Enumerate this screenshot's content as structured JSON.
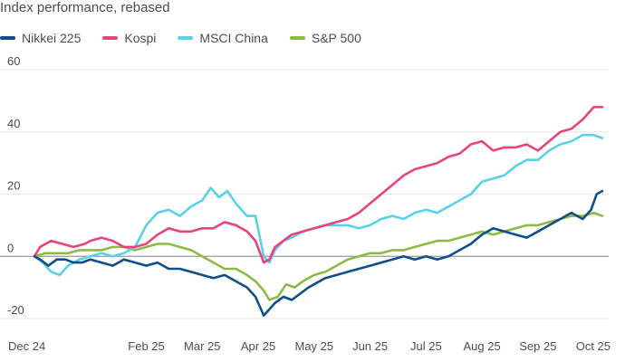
{
  "chart_data": {
    "type": "line",
    "title": "Index performance, rebased",
    "xlabel": "",
    "ylabel": "",
    "ylim": [
      -20,
      60
    ],
    "yticks": [
      60,
      40,
      20,
      0,
      -20
    ],
    "xticks": [
      "Dec 24",
      "Feb 25",
      "Mar 25",
      "Apr 25",
      "May 25",
      "Jun 25",
      "Jul 25",
      "Aug 25",
      "Sep 25",
      "Oct 25"
    ],
    "xtick_pos": [
      0,
      2,
      3,
      4,
      5,
      6,
      7,
      8,
      9,
      10
    ],
    "xlim": [
      0,
      10.2
    ],
    "grid": true,
    "legend_position": "top-left",
    "series": [
      {
        "name": "Nikkei 225",
        "color": "#0f4e8a",
        "x": [
          0,
          0.1,
          0.25,
          0.4,
          0.55,
          0.7,
          0.85,
          1,
          1.2,
          1.4,
          1.6,
          1.8,
          2,
          2.2,
          2.4,
          2.6,
          2.8,
          3,
          3.2,
          3.4,
          3.6,
          3.8,
          3.95,
          4.1,
          4.2,
          4.3,
          4.45,
          4.6,
          4.75,
          4.9,
          5,
          5.2,
          5.4,
          5.6,
          5.8,
          6,
          6.2,
          6.4,
          6.6,
          6.8,
          7,
          7.2,
          7.4,
          7.6,
          7.8,
          8,
          8.2,
          8.4,
          8.6,
          8.8,
          9,
          9.2,
          9.4,
          9.6,
          9.8,
          9.95,
          10.05,
          10.15
        ],
        "values": [
          0,
          -1,
          -3,
          -1,
          -1,
          -2,
          -2,
          -1,
          -2,
          -3,
          -1,
          -2,
          -3,
          -2,
          -4,
          -4,
          -5,
          -6,
          -7,
          -6,
          -8,
          -10,
          -13,
          -19,
          -17,
          -15,
          -13,
          -14,
          -12,
          -10,
          -9,
          -7,
          -6,
          -5,
          -4,
          -3,
          -2,
          -1,
          0,
          -1,
          0,
          -1,
          0,
          2,
          4,
          7,
          9,
          8,
          7,
          6,
          8,
          10,
          12,
          14,
          12,
          15,
          20,
          21
        ]
      },
      {
        "name": "Kospi",
        "color": "#e8437f",
        "x": [
          0,
          0.1,
          0.3,
          0.5,
          0.7,
          0.9,
          1,
          1.2,
          1.4,
          1.6,
          1.8,
          2,
          2.2,
          2.4,
          2.6,
          2.8,
          3,
          3.2,
          3.4,
          3.6,
          3.8,
          3.95,
          4.1,
          4.2,
          4.3,
          4.45,
          4.6,
          4.8,
          5,
          5.2,
          5.4,
          5.6,
          5.8,
          6,
          6.2,
          6.4,
          6.6,
          6.8,
          7,
          7.2,
          7.4,
          7.6,
          7.8,
          8,
          8.2,
          8.4,
          8.6,
          8.8,
          9,
          9.2,
          9.4,
          9.6,
          9.8,
          10,
          10.15
        ],
        "values": [
          0,
          3,
          5,
          4,
          3,
          4,
          5,
          6,
          5,
          3,
          3,
          4,
          7,
          9,
          8,
          8,
          9,
          9,
          11,
          10,
          8,
          5,
          -2,
          -1,
          3,
          5,
          7,
          8,
          9,
          10,
          11,
          12,
          14,
          17,
          20,
          23,
          26,
          28,
          29,
          30,
          32,
          33,
          36,
          37,
          34,
          35,
          35,
          36,
          34,
          37,
          40,
          41,
          44,
          48,
          48
        ]
      },
      {
        "name": "MSCI China",
        "color": "#5bd1e6",
        "x": [
          0,
          0.15,
          0.3,
          0.45,
          0.6,
          0.8,
          1,
          1.2,
          1.4,
          1.6,
          1.8,
          2,
          2.2,
          2.4,
          2.6,
          2.8,
          3,
          3.15,
          3.3,
          3.45,
          3.6,
          3.8,
          3.95,
          4.1,
          4.2,
          4.3,
          4.45,
          4.6,
          4.8,
          5,
          5.2,
          5.4,
          5.6,
          5.8,
          6,
          6.2,
          6.4,
          6.6,
          6.8,
          7,
          7.2,
          7.4,
          7.6,
          7.8,
          8,
          8.2,
          8.4,
          8.6,
          8.8,
          9,
          9.2,
          9.4,
          9.6,
          9.8,
          10,
          10.15
        ],
        "values": [
          0,
          -2,
          -5,
          -6,
          -3,
          -1,
          0,
          1,
          0,
          1,
          3,
          10,
          14,
          15,
          13,
          16,
          18,
          22,
          19,
          21,
          17,
          13,
          13,
          0,
          -2,
          2,
          5,
          6,
          8,
          9,
          10,
          10,
          10,
          9,
          10,
          12,
          13,
          12,
          14,
          15,
          14,
          16,
          18,
          20,
          24,
          25,
          26,
          29,
          31,
          31,
          34,
          36,
          37,
          39,
          39,
          38
        ]
      },
      {
        "name": "S&P 500",
        "color": "#8dba47",
        "x": [
          0,
          0.2,
          0.4,
          0.6,
          0.8,
          1,
          1.2,
          1.4,
          1.6,
          1.8,
          2,
          2.2,
          2.4,
          2.6,
          2.8,
          3,
          3.2,
          3.4,
          3.6,
          3.8,
          3.95,
          4.1,
          4.2,
          4.35,
          4.5,
          4.65,
          4.8,
          5,
          5.2,
          5.4,
          5.6,
          5.8,
          6,
          6.2,
          6.4,
          6.6,
          6.8,
          7,
          7.2,
          7.4,
          7.6,
          7.8,
          8,
          8.2,
          8.4,
          8.6,
          8.8,
          9,
          9.2,
          9.4,
          9.6,
          9.8,
          10,
          10.15
        ],
        "values": [
          0,
          1,
          1,
          1,
          2,
          2,
          2,
          3,
          3,
          2,
          3,
          4,
          4,
          3,
          2,
          0,
          -2,
          -4,
          -4,
          -6,
          -8,
          -11,
          -14,
          -13,
          -9,
          -10,
          -8,
          -6,
          -5,
          -3,
          -1,
          0,
          1,
          1,
          2,
          2,
          3,
          4,
          5,
          5,
          6,
          7,
          8,
          7,
          8,
          9,
          10,
          10,
          11,
          12,
          13,
          13,
          14,
          13
        ]
      }
    ]
  }
}
